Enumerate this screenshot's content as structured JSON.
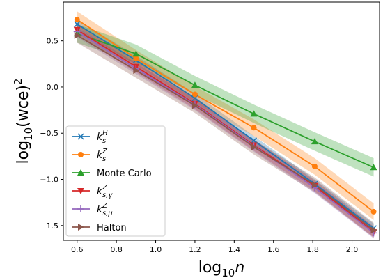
{
  "chart_data": {
    "type": "line",
    "xlabel": {
      "main": "log",
      "sub": "10",
      "var": "n"
    },
    "ylabel": {
      "main": "log",
      "sub": "10",
      "paren": "(wce)",
      "sup": "2"
    },
    "xlim": [
      0.53,
      2.14
    ],
    "ylim": [
      -1.66,
      0.92
    ],
    "xticks": [
      0.6,
      0.8,
      1.0,
      1.2,
      1.4,
      1.6,
      1.8,
      2.0
    ],
    "xtick_labels": [
      "0.6",
      "0.8",
      "1.0",
      "1.2",
      "1.4",
      "1.6",
      "1.8",
      "2.0"
    ],
    "yticks": [
      0.5,
      0.0,
      -0.5,
      -1.0,
      -1.5
    ],
    "ytick_labels": [
      "0.5",
      "0.0",
      "−0.5",
      "−1.0",
      "−1.5"
    ],
    "grid": false,
    "legend_position": "lower-left",
    "x": [
      0.6,
      0.9,
      1.2,
      1.5,
      1.81,
      2.11
    ],
    "series": [
      {
        "key": "ksH",
        "label": {
          "base": "k",
          "sub": "s",
          "sup": "H"
        },
        "color": "#1f77b4",
        "marker": "x",
        "values": [
          0.68,
          0.29,
          -0.12,
          -0.58,
          -1.05,
          -1.53
        ],
        "band": 0.05
      },
      {
        "key": "ksZ",
        "label": {
          "base": "k",
          "sub": "s",
          "sup": "Z"
        },
        "color": "#ff7f0e",
        "marker": "circle",
        "values": [
          0.73,
          0.31,
          -0.08,
          -0.44,
          -0.86,
          -1.35
        ],
        "band": 0.09
      },
      {
        "key": "mc",
        "label": {
          "text": "Monte Carlo"
        },
        "color": "#2ca02c",
        "marker": "triangle-up",
        "values": [
          0.58,
          0.36,
          0.02,
          -0.29,
          -0.59,
          -0.87
        ],
        "band": 0.1
      },
      {
        "key": "ksgamma",
        "label": {
          "base": "k",
          "sub": "s,γ",
          "sup": "Z"
        },
        "color": "#d62728",
        "marker": "triangle-down",
        "values": [
          0.62,
          0.22,
          -0.18,
          -0.63,
          -1.07,
          -1.57
        ],
        "band": 0.06
      },
      {
        "key": "ksmu",
        "label": {
          "base": "k",
          "sub": "s,μ",
          "sup": "Z"
        },
        "color": "#9467bd",
        "marker": "plus",
        "values": [
          0.6,
          0.2,
          -0.19,
          -0.64,
          -1.09,
          -1.58
        ],
        "band": 0.06
      },
      {
        "key": "halton",
        "label": {
          "text": "Halton"
        },
        "color": "#8c564b",
        "marker": "triangle-right",
        "values": [
          0.56,
          0.18,
          -0.2,
          -0.65,
          -1.06,
          -1.55
        ],
        "band": 0.08
      }
    ]
  }
}
